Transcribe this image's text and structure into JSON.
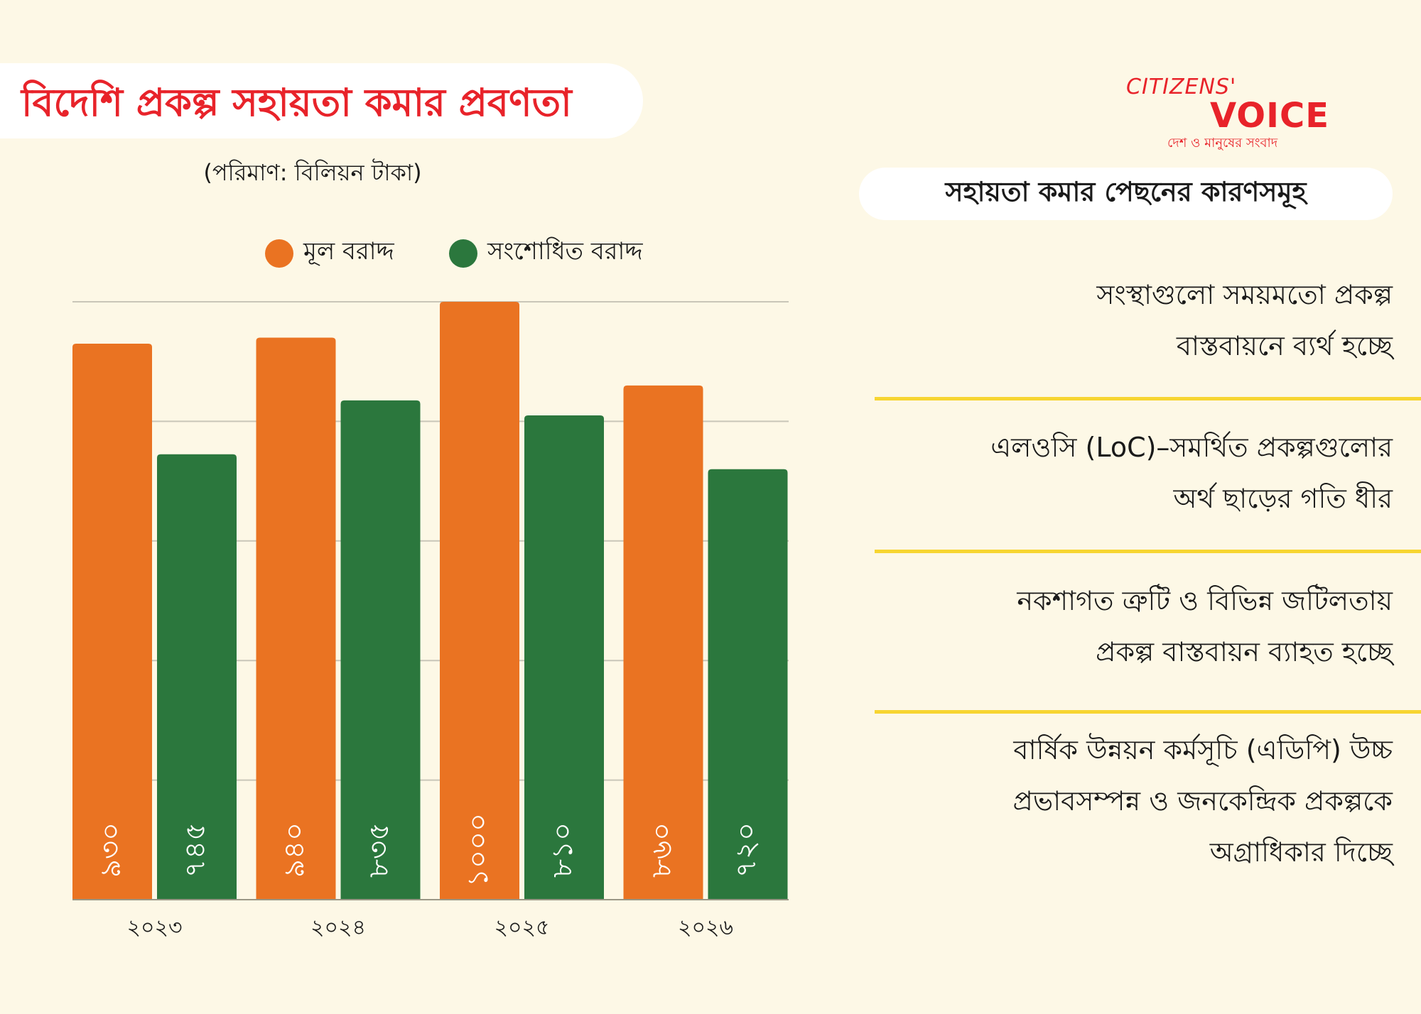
{
  "title": "বিদেশি প্রকল্প সহায়তা কমার প্রবণতা",
  "subtitle": "(পরিমাণ: বিলিয়ন টাকা)",
  "logo": {
    "line1": "CITIZENS'",
    "line2": "VOICE",
    "tagline": "দেশ ও মানুষের সংবাদ"
  },
  "reasons": {
    "title": "সহায়তা কমার পেছনের কারণসমূহ",
    "items": [
      {
        "lines": [
          "সংস্থাগুলো সময়মতো প্রকল্প",
          "বাস্তবায়নে ব্যর্থ হচ্ছে"
        ]
      },
      {
        "lines": [
          "এলওসি (LoC)–সমর্থিত প্রকল্পগুলোর",
          "অর্থ ছাড়ের গতি ধীর"
        ]
      },
      {
        "lines": [
          "নকশাগত ত্রুটি ও বিভিন্ন জটিলতায়",
          "প্রকল্প বাস্তবায়ন ব্যাহত হচ্ছে"
        ]
      },
      {
        "lines": [
          "বার্ষিক উন্নয়ন কর্মসূচি (এডিপি) উচ্চ",
          "প্রভাবসম্পন্ন ও জনকেন্দ্রিক প্রকল্পকে",
          "অগ্রাধিকার দিচ্ছে"
        ]
      }
    ]
  },
  "chart_data": {
    "type": "bar",
    "title": "বিদেশি প্রকল্প সহায়তা কমার প্রবণতা",
    "ylabel": "বিলিয়ন টাকা",
    "categories": [
      "২০২৩",
      "২০২৪",
      "২০২৫",
      "২০২৬"
    ],
    "series": [
      {
        "name": "মূল বরাদ্দ",
        "color": "#ea7322",
        "values": [
          930,
          940,
          1000,
          860
        ],
        "labels": [
          "৯৩০",
          "৯৪০",
          "১০০০",
          "৮৬০"
        ]
      },
      {
        "name": "সংশোধিত বরাদ্দ",
        "color": "#2b773d",
        "values": [
          745,
          835,
          810,
          720
        ],
        "labels": [
          "৭৪৫",
          "৮৩৫",
          "৮১০",
          "৭২০"
        ]
      }
    ],
    "ylim": [
      0,
      1000
    ],
    "gridlines": [
      0,
      200,
      400,
      600,
      800,
      1000
    ],
    "grid": true,
    "legend": "top"
  }
}
